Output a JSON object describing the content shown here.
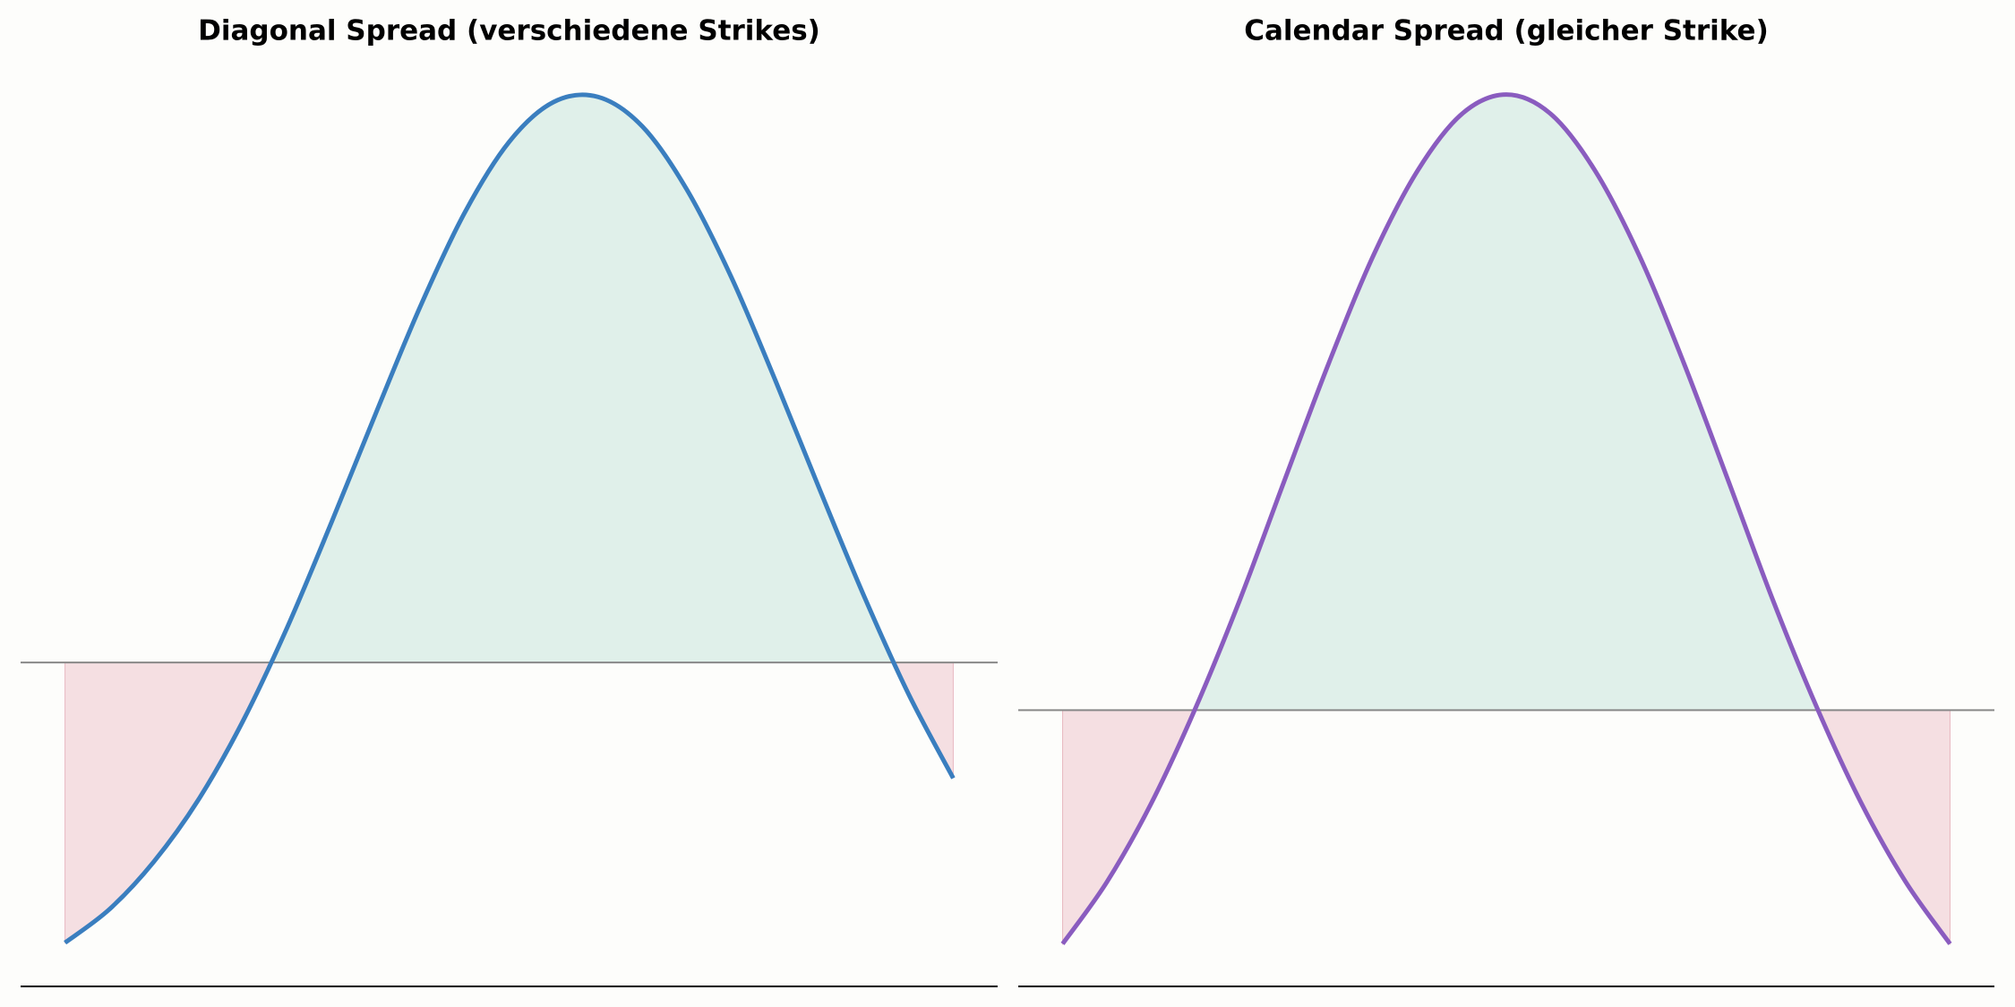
{
  "chart_data": [
    {
      "type": "line",
      "title": "Diagonal Spread (verschiedene Strikes)",
      "x": [
        80,
        82,
        84,
        86,
        88,
        90,
        92,
        94,
        96,
        98,
        100,
        102,
        104,
        106,
        108,
        110,
        112,
        114,
        116,
        118,
        120
      ],
      "values": [
        -2.18,
        -1.92,
        -1.55,
        -1.07,
        -0.46,
        0.27,
        1.09,
        1.94,
        2.77,
        3.5,
        4.05,
        4.36,
        4.4,
        4.17,
        3.68,
        3.0,
        2.19,
        1.34,
        0.51,
        -0.25,
        -0.9
      ],
      "color": "#3a7ebf",
      "profit_color": "#e0f0ea",
      "loss_color": "#f5dfe2",
      "xlim": [
        78,
        122
      ],
      "ylim": [
        -2.52,
        4.75
      ]
    },
    {
      "type": "line",
      "title": "Calendar Spread (gleicher Strike)",
      "x": [
        80,
        82,
        84,
        86,
        88,
        90,
        92,
        94,
        96,
        98,
        100,
        102,
        104,
        106,
        108,
        110,
        112,
        114,
        116,
        118,
        120
      ],
      "values": [
        -1.81,
        -1.33,
        -0.72,
        0.02,
        0.86,
        1.78,
        2.69,
        3.52,
        4.18,
        4.62,
        4.77,
        4.62,
        4.18,
        3.52,
        2.69,
        1.78,
        0.86,
        0.02,
        -0.72,
        -1.33,
        -1.81
      ],
      "color": "#8a5cbf",
      "profit_color": "#e0f0ea",
      "loss_color": "#f5dfe2",
      "xlim": [
        78,
        122
      ],
      "ylim": [
        -2.14,
        5.1
      ]
    }
  ]
}
